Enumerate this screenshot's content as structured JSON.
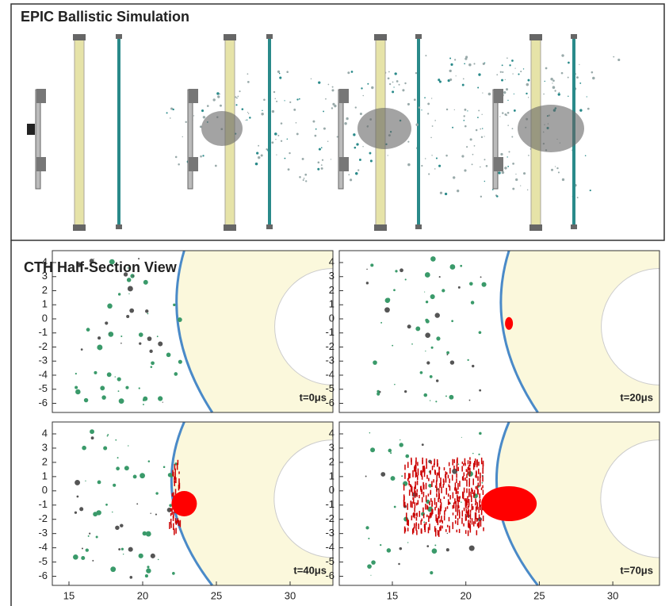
{
  "top": {
    "title": "EPIC Ballistic Simulation"
  },
  "bottom": {
    "title": "CTH Half-Section View",
    "yticks": [
      4,
      3,
      2,
      1,
      0,
      -1,
      -2,
      -3,
      -4,
      -5,
      -6
    ],
    "xticks": [
      15,
      20,
      25,
      30
    ],
    "panels": [
      {
        "label": "t=0μs"
      },
      {
        "label": "t=20μs"
      },
      {
        "label": "t=40μs"
      },
      {
        "label": "t=70μs"
      }
    ]
  }
}
